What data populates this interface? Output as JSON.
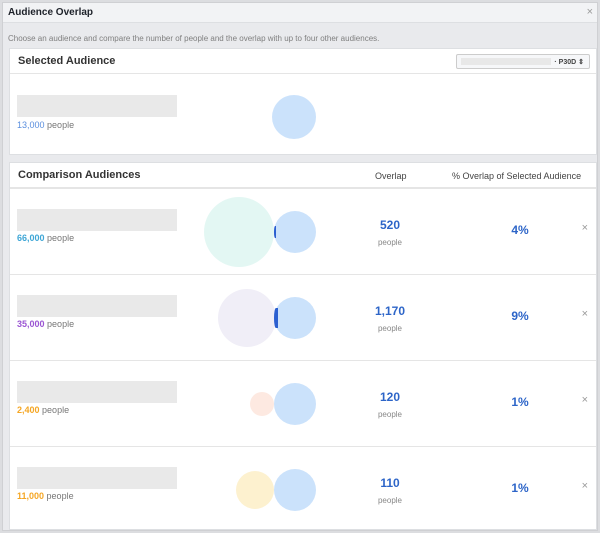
{
  "window": {
    "title": "Audience Overlap",
    "close": "×"
  },
  "description": "Choose an audience and compare the number of people and the overlap with up to four other audiences.",
  "selected": {
    "heading": "Selected Audience",
    "dropdown_value": "· P30D ⇕",
    "count": "13,000",
    "unit": "people",
    "color": "#5b8fde"
  },
  "comparison": {
    "heading": "Comparison Audiences",
    "col_overlap": "Overlap",
    "col_pct": "% Overlap of Selected Audience",
    "rows": [
      {
        "count": "66,000",
        "unit": "people",
        "color": "#3ea6d6",
        "circle_color": "#e3f7f3",
        "overlap": "520",
        "overlap_unit": "people",
        "pct": "4%",
        "remove": "×"
      },
      {
        "count": "35,000",
        "unit": "people",
        "color": "#9b55d3",
        "circle_color": "#f0eef7",
        "overlap": "1,170",
        "overlap_unit": "people",
        "pct": "9%",
        "remove": "×"
      },
      {
        "count": "2,400",
        "unit": "people",
        "color": "#f5a623",
        "circle_color": "#fde9e1",
        "overlap": "120",
        "overlap_unit": "people",
        "pct": "1%",
        "remove": "×"
      },
      {
        "count": "11,000",
        "unit": "people",
        "color": "#f5a623",
        "circle_color": "#fdf1cf",
        "overlap": "110",
        "overlap_unit": "people",
        "pct": "1%",
        "remove": "×"
      }
    ]
  }
}
